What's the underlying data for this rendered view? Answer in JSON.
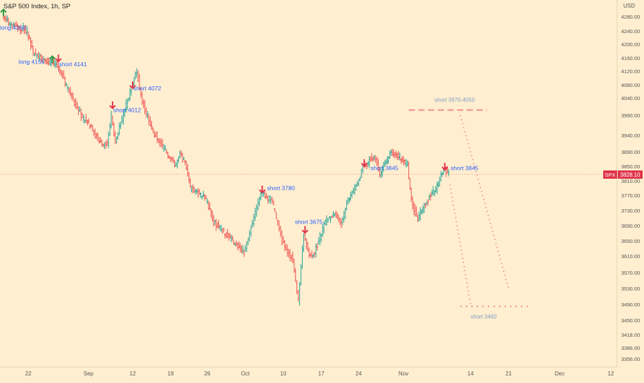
{
  "header": {
    "title": "S&P 500 Index, 1h, SP"
  },
  "colors": {
    "background": "#ffeed0",
    "up": "#26a69a",
    "down": "#ef5350",
    "arrow_long": "#2e9b45",
    "arrow_short": "#e0344a",
    "label_text": "#2962ff",
    "projection": "#f08c96",
    "projection_label": "#7f9cc4"
  },
  "chart_data": {
    "type": "ohlc",
    "title": "S&P 500 Index, 1h, SP",
    "currency": "USD",
    "last_price": 3828.1,
    "last_price_label": "3828.10",
    "symbol_tag": "SPX",
    "grid": false,
    "ylim": [
      3330,
      4310
    ],
    "y_ticks": [
      4280,
      4240,
      4200,
      4160,
      4120,
      4080,
      4040,
      3990,
      3940,
      3890,
      3850,
      3810,
      3770,
      3730,
      3690,
      3650,
      3610,
      3570,
      3530,
      3490,
      3450,
      3418,
      3386,
      3356
    ],
    "y_tick_labels": [
      "4280.00",
      "4240.00",
      "4200.00",
      "4160.00",
      "4120.00",
      "4080.00",
      "4040.00",
      "3990.00",
      "3940.00",
      "3890.00",
      "3850.00",
      "3810.00",
      "3770.00",
      "3730.00",
      "3690.00",
      "3650.00",
      "3610.00",
      "3570.00",
      "3530.00",
      "3490.00",
      "3450.00",
      "3418.00",
      "3386.00",
      "3356.00"
    ],
    "x_start": "2022-08-18",
    "x_end": "2022-12-12",
    "x_ticks": [
      {
        "date": "2022-08-22",
        "label": "22"
      },
      {
        "date": "2022-09-01",
        "label": "Sep"
      },
      {
        "date": "2022-09-12",
        "label": "12"
      },
      {
        "date": "2022-09-19",
        "label": "19"
      },
      {
        "date": "2022-09-26",
        "label": "26"
      },
      {
        "date": "2022-10-01",
        "label": "Oct"
      },
      {
        "date": "2022-10-10",
        "label": "10"
      },
      {
        "date": "2022-10-17",
        "label": "17"
      },
      {
        "date": "2022-10-24",
        "label": "24"
      },
      {
        "date": "2022-11-01",
        "label": "Nov"
      },
      {
        "date": "2022-11-14",
        "label": "14"
      },
      {
        "date": "2022-11-21",
        "label": "21"
      },
      {
        "date": "2022-12-01",
        "label": "Dec"
      },
      {
        "date": "2022-12-12",
        "label": "12"
      }
    ],
    "price_path": [
      {
        "date": "2022-08-18",
        "price": 4285
      },
      {
        "date": "2022-08-19",
        "price": 4262
      },
      {
        "date": "2022-08-22",
        "price": 4240
      },
      {
        "date": "2022-08-23",
        "price": 4175
      },
      {
        "date": "2022-08-25",
        "price": 4150
      },
      {
        "date": "2022-08-26",
        "price": 4150
      },
      {
        "date": "2022-08-27",
        "price": 4141
      },
      {
        "date": "2022-08-29",
        "price": 4060
      },
      {
        "date": "2022-08-31",
        "price": 3990
      },
      {
        "date": "2022-09-02",
        "price": 3960
      },
      {
        "date": "2022-09-04",
        "price": 3920
      },
      {
        "date": "2022-09-06",
        "price": 3910
      },
      {
        "date": "2022-09-07",
        "price": 3990
      },
      {
        "date": "2022-09-08",
        "price": 3920
      },
      {
        "date": "2022-09-09",
        "price": 3960
      },
      {
        "date": "2022-09-11",
        "price": 4030
      },
      {
        "date": "2022-09-12",
        "price": 4072
      },
      {
        "date": "2022-09-13",
        "price": 4120
      },
      {
        "date": "2022-09-14",
        "price": 4030
      },
      {
        "date": "2022-09-16",
        "price": 3950
      },
      {
        "date": "2022-09-18",
        "price": 3900
      },
      {
        "date": "2022-09-20",
        "price": 3850
      },
      {
        "date": "2022-09-21",
        "price": 3880
      },
      {
        "date": "2022-09-22",
        "price": 3860
      },
      {
        "date": "2022-09-23",
        "price": 3790
      },
      {
        "date": "2022-09-26",
        "price": 3760
      },
      {
        "date": "2022-09-27",
        "price": 3700
      },
      {
        "date": "2022-09-29",
        "price": 3660
      },
      {
        "date": "2022-10-01",
        "price": 3620
      },
      {
        "date": "2022-10-03",
        "price": 3700
      },
      {
        "date": "2022-10-05",
        "price": 3780
      },
      {
        "date": "2022-10-07",
        "price": 3760
      },
      {
        "date": "2022-10-08",
        "price": 3740
      },
      {
        "date": "2022-10-10",
        "price": 3650
      },
      {
        "date": "2022-10-12",
        "price": 3600
      },
      {
        "date": "2022-10-13",
        "price": 3500
      },
      {
        "date": "2022-10-14",
        "price": 3670
      },
      {
        "date": "2022-10-15",
        "price": 3610
      },
      {
        "date": "2022-10-16",
        "price": 3620
      },
      {
        "date": "2022-10-18",
        "price": 3700
      },
      {
        "date": "2022-10-20",
        "price": 3720
      },
      {
        "date": "2022-10-21",
        "price": 3690
      },
      {
        "date": "2022-10-22",
        "price": 3750
      },
      {
        "date": "2022-10-24",
        "price": 3800
      },
      {
        "date": "2022-10-25",
        "price": 3845
      },
      {
        "date": "2022-10-27",
        "price": 3880
      },
      {
        "date": "2022-10-28",
        "price": 3830
      },
      {
        "date": "2022-10-30",
        "price": 3890
      },
      {
        "date": "2022-11-01",
        "price": 3870
      },
      {
        "date": "2022-11-02",
        "price": 3850
      },
      {
        "date": "2022-11-03",
        "price": 3740
      },
      {
        "date": "2022-11-04",
        "price": 3710
      },
      {
        "date": "2022-11-06",
        "price": 3760
      },
      {
        "date": "2022-11-08",
        "price": 3800
      },
      {
        "date": "2022-11-09",
        "price": 3845
      },
      {
        "date": "2022-11-10",
        "price": 3828
      }
    ],
    "markers": [
      {
        "type": "long",
        "date": "2022-08-18",
        "price": 4290,
        "label": "long 4260",
        "label_date": "2022-08-18",
        "label_price": 4250
      },
      {
        "type": "long",
        "date": "2022-08-26",
        "price": 4155,
        "label": "long 4155",
        "label_date": "2022-08-21",
        "label_price": 4148
      },
      {
        "type": "short",
        "date": "2022-08-27",
        "price": 4160,
        "label": "short 4141",
        "label_date": "2022-08-27",
        "label_price": 4141
      },
      {
        "type": "short",
        "date": "2022-09-07",
        "price": 4020,
        "label": "short  4012",
        "label_date": "2022-09-07",
        "label_price": 4005
      },
      {
        "type": "short",
        "date": "2022-09-12",
        "price": 4080,
        "label": "short  4072",
        "label_date": "2022-09-12",
        "label_price": 4070
      },
      {
        "type": "short",
        "date": "2022-10-05",
        "price": 3787,
        "label": "short 3780",
        "label_date": "2022-10-06",
        "label_price": 3790
      },
      {
        "type": "short",
        "date": "2022-10-14",
        "price": 3680,
        "label": "short 3675",
        "label_date": "2022-10-12",
        "label_price": 3700
      },
      {
        "type": "short",
        "date": "2022-10-25",
        "price": 3860,
        "label": "short 3845",
        "label_date": "2022-10-26",
        "label_price": 3845
      },
      {
        "type": "short",
        "date": "2022-11-09",
        "price": 3850,
        "label": "short 3845",
        "label_date": "2022-11-10",
        "label_price": 3845
      }
    ],
    "projections": [
      {
        "kind": "dashed-level",
        "from": "2022-11-02",
        "to": "2022-11-17",
        "price": 4005,
        "label": "short 3970-4050",
        "label_date": "2022-11-07",
        "label_price": 4035
      },
      {
        "kind": "dotted-line",
        "points": [
          {
            "date": "2022-11-12",
            "price": 3990
          },
          {
            "date": "2022-11-21",
            "price": 3530
          }
        ]
      },
      {
        "kind": "dotted-line",
        "points": [
          {
            "date": "2022-11-10",
            "price": 3800
          },
          {
            "date": "2022-11-14",
            "price": 3490
          }
        ]
      },
      {
        "kind": "dotted-level",
        "from": "2022-11-12",
        "to": "2022-11-25",
        "price": 3485,
        "label": "short 3460",
        "label_date": "2022-11-14",
        "label_price": 3460
      }
    ]
  }
}
